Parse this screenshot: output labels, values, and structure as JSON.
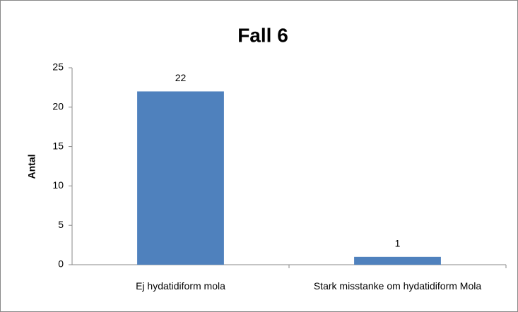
{
  "chart_data": {
    "type": "bar",
    "title": "Fall 6",
    "y_label": "Antal",
    "categories": [
      "Ej hydatidiform mola",
      "Stark misstanke om hydatidiform Mola"
    ],
    "values": [
      22,
      1
    ],
    "color": "#4f81bd",
    "ylim": [
      0,
      25
    ],
    "yticks": [
      0,
      5,
      10,
      15,
      20,
      25
    ],
    "grid": false
  }
}
